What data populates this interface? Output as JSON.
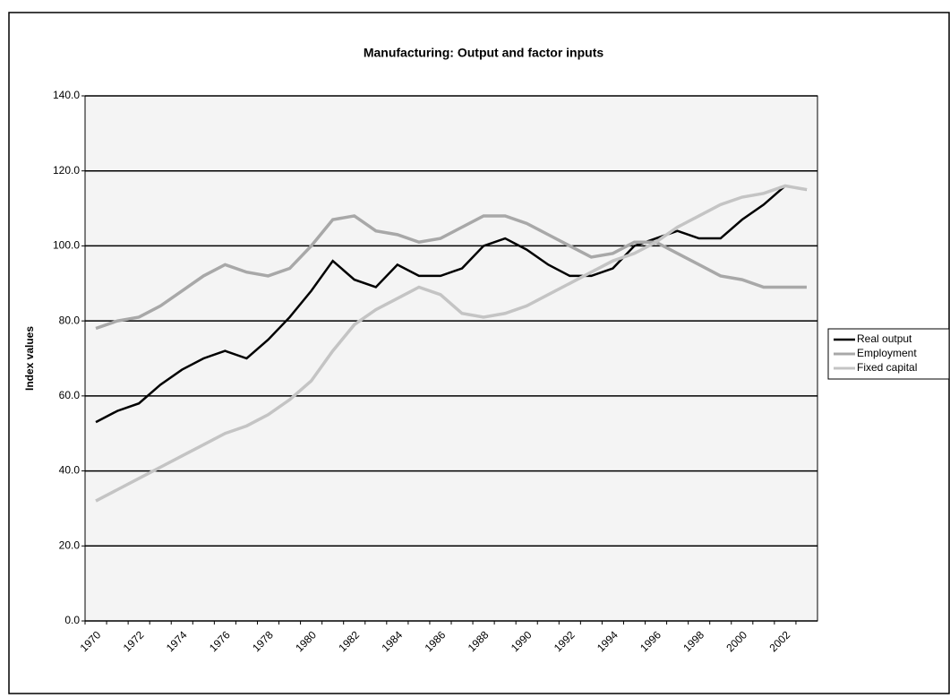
{
  "chart_data": {
    "type": "line",
    "title": "Manufacturing: Output and factor inputs",
    "ylabel": "Index values",
    "categories": [
      "1970",
      null,
      "1972",
      null,
      "1974",
      null,
      "1976",
      null,
      "1978",
      null,
      "1980",
      null,
      "1982",
      null,
      "1984",
      null,
      "1986",
      null,
      "1988",
      null,
      "1990",
      null,
      "1992",
      null,
      "1994",
      null,
      "1996",
      null,
      "1998",
      null,
      "2000",
      null,
      "2002",
      null
    ],
    "series": [
      {
        "name": "Real output",
        "color": "#000000",
        "values": [
          53,
          56,
          58,
          63,
          67,
          70,
          72,
          70,
          75,
          81,
          88,
          96,
          91,
          89,
          95,
          92,
          92,
          94,
          100,
          102,
          99,
          95,
          92,
          92,
          94,
          100,
          102,
          104,
          102,
          102,
          107,
          111,
          116,
          115
        ]
      },
      {
        "name": "Employment",
        "color": "#a8a8a8",
        "values": [
          78,
          80,
          81,
          84,
          88,
          92,
          95,
          93,
          92,
          94,
          100,
          107,
          108,
          104,
          103,
          101,
          102,
          105,
          108,
          108,
          106,
          103,
          100,
          97,
          98,
          101,
          101,
          98,
          95,
          92,
          91,
          89,
          89,
          89
        ]
      },
      {
        "name": "Fixed capital",
        "color": "#c4c4c4",
        "values": [
          32,
          35,
          38,
          41,
          44,
          47,
          50,
          52,
          55,
          59,
          64,
          72,
          79,
          83,
          86,
          89,
          87,
          82,
          81,
          82,
          84,
          87,
          90,
          93,
          96,
          98,
          101,
          105,
          108,
          111,
          113,
          114,
          116,
          115
        ]
      }
    ],
    "ylim": [
      0,
      140
    ],
    "yticks": [
      {
        "value": 0,
        "label": "0.0"
      },
      {
        "value": 20,
        "label": "20.0"
      },
      {
        "value": 40,
        "label": "40.0"
      },
      {
        "value": 60,
        "label": "60.0"
      },
      {
        "value": 80,
        "label": "80.0"
      },
      {
        "value": 100,
        "label": "100.0"
      },
      {
        "value": 120,
        "label": "120.0"
      },
      {
        "value": 140,
        "label": "140.0"
      }
    ],
    "grid": true,
    "legend": "right"
  }
}
